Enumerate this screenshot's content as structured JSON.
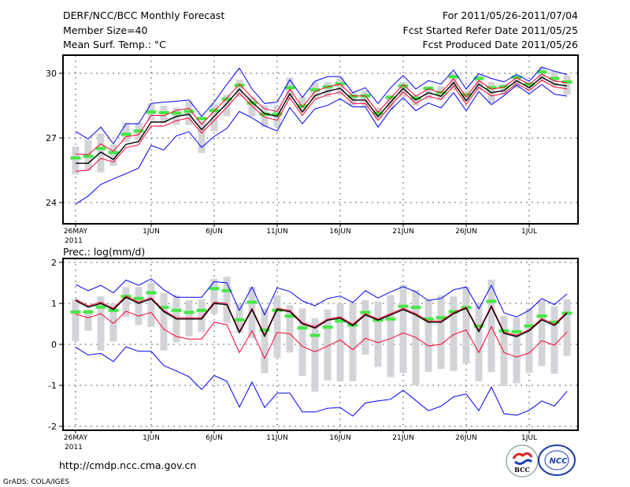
{
  "header": {
    "title": "DERF/NCC/BCC Monthly Forecast",
    "member_size": "Member Size=40",
    "variable": "Mean Surf. Temp.: °C",
    "period": "For 2011/05/26-2011/07/04",
    "started": "Fcst Started Refer Date 2011/05/25",
    "produced": "Fcst Produced Date 2011/05/26"
  },
  "footer": {
    "url": "http://cmdp.ncc.cma.gov.cn",
    "credit": "GrADS: COLA/IGES",
    "logo_bcc": "BCC",
    "logo_ncc": "NCC"
  },
  "colors": {
    "max_min": "#0000ff",
    "spread": "#ff0030",
    "mean": "#000000",
    "obs": "#44e844",
    "range": "#d2d4d8"
  },
  "chart_data": [
    {
      "type": "line",
      "title": "Mean Surf. Temp.: °C",
      "x_start": "26MAY 2011",
      "x_tick_labels": [
        {
          "day": 0,
          "label": "26MAY",
          "sub": "2011"
        },
        {
          "day": 6,
          "label": "1JUN"
        },
        {
          "day": 11,
          "label": "6JUN"
        },
        {
          "day": 16,
          "label": "11JUN"
        },
        {
          "day": 21,
          "label": "16JUN"
        },
        {
          "day": 26,
          "label": "21JUN"
        },
        {
          "day": 31,
          "label": "26JUN"
        },
        {
          "day": 36,
          "label": "1JUL"
        }
      ],
      "y_ticks": [
        24,
        27,
        30
      ],
      "ylim": [
        22.6,
        31
      ],
      "grid": true,
      "series": {
        "max": [
          27.3,
          26.95,
          27.5,
          26.73,
          27.66,
          27.66,
          28.6,
          28.66,
          28.7,
          28.76,
          28.0,
          28.66,
          29.48,
          30.24,
          29.27,
          28.6,
          28.66,
          29.7,
          28.88,
          29.63,
          29.85,
          29.85,
          29.1,
          29.33,
          28.6,
          29.33,
          29.9,
          29.27,
          29.66,
          29.5,
          30.15,
          29.27,
          29.98,
          29.76,
          29.6,
          29.94,
          29.63,
          30.28,
          30.1,
          29.94
        ],
        "min": [
          23.93,
          24.3,
          24.84,
          25.1,
          25.34,
          25.6,
          26.65,
          26.44,
          27.1,
          27.28,
          26.56,
          27.07,
          27.44,
          28.23,
          27.93,
          27.56,
          27.32,
          28.41,
          27.66,
          28.35,
          28.51,
          28.82,
          28.44,
          28.44,
          27.5,
          28.3,
          28.87,
          28.26,
          28.62,
          28.39,
          29.1,
          28.26,
          29.15,
          28.54,
          28.96,
          29.45,
          29.05,
          29.48,
          29.03,
          28.94
        ],
        "upper": [
          26.25,
          26.22,
          26.72,
          26.38,
          27.05,
          27.15,
          28.05,
          28.03,
          28.28,
          28.37,
          27.63,
          28.25,
          28.85,
          29.5,
          28.88,
          28.35,
          28.22,
          29.27,
          28.42,
          29.16,
          29.37,
          29.5,
          28.95,
          28.95,
          28.19,
          28.85,
          29.48,
          28.94,
          29.28,
          29.1,
          29.74,
          28.9,
          29.66,
          29.26,
          29.36,
          29.8,
          29.48,
          29.96,
          29.65,
          29.56
        ],
        "lower": [
          25.45,
          25.5,
          26.05,
          25.88,
          26.55,
          26.68,
          27.55,
          27.55,
          27.8,
          27.92,
          27.22,
          27.82,
          28.42,
          29.08,
          28.48,
          27.96,
          27.82,
          28.86,
          28.04,
          28.79,
          29.0,
          29.13,
          28.6,
          28.6,
          27.82,
          28.5,
          29.14,
          28.6,
          28.94,
          28.78,
          29.42,
          28.56,
          29.35,
          28.95,
          29.06,
          29.53,
          29.2,
          29.68,
          29.36,
          29.28
        ],
        "mean": [
          25.82,
          25.82,
          26.34,
          26.0,
          26.7,
          26.83,
          27.74,
          27.73,
          28.0,
          28.1,
          27.38,
          28.0,
          28.6,
          29.27,
          28.66,
          28.13,
          28.0,
          29.05,
          28.2,
          28.96,
          29.17,
          29.3,
          28.76,
          28.76,
          27.99,
          28.66,
          29.3,
          28.76,
          29.1,
          28.93,
          29.57,
          28.72,
          29.5,
          29.1,
          29.2,
          29.66,
          29.33,
          29.82,
          29.5,
          29.41
        ],
        "obs": [
          26.07,
          26.15,
          26.51,
          26.32,
          27.17,
          27.32,
          28.2,
          28.17,
          28.15,
          28.23,
          27.9,
          28.27,
          28.8,
          29.44,
          28.62,
          28.1,
          28.1,
          29.33,
          28.48,
          29.23,
          29.37,
          29.51,
          28.93,
          28.95,
          28.15,
          28.88,
          29.41,
          28.84,
          29.3,
          29.1,
          29.84,
          29.0,
          29.76,
          29.33,
          29.37,
          29.82,
          29.49,
          30.06,
          29.76,
          29.6
        ],
        "range_low": [
          25.3,
          25.5,
          25.4,
          25.7,
          26.8,
          26.9,
          27.8,
          27.7,
          27.6,
          27.6,
          26.3,
          27.3,
          28.0,
          28.9,
          28.0,
          27.5,
          27.5,
          28.8,
          28.2,
          28.8,
          28.9,
          29.0,
          28.5,
          28.4,
          27.9,
          28.3,
          28.9,
          28.5,
          28.8,
          28.8,
          29.2,
          28.7,
          29.2,
          28.6,
          29.0,
          29.3,
          29.2,
          29.6,
          29.4,
          29.0
        ],
        "range_high": [
          26.6,
          26.9,
          27.2,
          26.7,
          27.7,
          27.7,
          28.6,
          28.5,
          28.4,
          28.7,
          27.8,
          28.6,
          29.0,
          29.7,
          28.9,
          28.5,
          28.5,
          29.8,
          28.9,
          29.6,
          29.6,
          29.8,
          29.1,
          29.2,
          28.4,
          29.0,
          29.6,
          29.0,
          29.4,
          29.4,
          30.0,
          29.2,
          29.9,
          29.6,
          29.5,
          29.9,
          29.6,
          30.3,
          30.1,
          29.9
        ]
      }
    },
    {
      "type": "line",
      "title": "Prec.: log(mm/d)",
      "x_start": "26MAY 2011",
      "x_tick_labels": [
        {
          "day": 0,
          "label": "26MAY",
          "sub": "2011"
        },
        {
          "day": 6,
          "label": "1JUN"
        },
        {
          "day": 11,
          "label": "6JUN"
        },
        {
          "day": 16,
          "label": "11JUN"
        },
        {
          "day": 21,
          "label": "16JUN"
        },
        {
          "day": 26,
          "label": "21JUN"
        },
        {
          "day": 31,
          "label": "26JUN"
        },
        {
          "day": 36,
          "label": "1JUL"
        }
      ],
      "y_ticks": [
        -2,
        -1,
        0,
        1,
        2
      ],
      "ylim": [
        -2.1,
        2.1
      ],
      "grid": true,
      "series": {
        "max": [
          1.46,
          1.31,
          1.44,
          1.26,
          1.57,
          1.44,
          1.6,
          1.33,
          1.15,
          1.15,
          1.15,
          1.53,
          1.5,
          0.83,
          1.4,
          0.72,
          1.38,
          1.29,
          1.06,
          0.94,
          1.12,
          1.18,
          1.02,
          1.31,
          1.13,
          1.28,
          1.41,
          1.28,
          1.07,
          1.12,
          1.33,
          1.4,
          0.87,
          1.44,
          0.77,
          0.67,
          0.83,
          1.12,
          0.97,
          1.23
        ],
        "min": [
          -0.07,
          -0.26,
          -0.22,
          -0.42,
          -0.06,
          -0.17,
          -0.17,
          -0.52,
          -0.65,
          -0.79,
          -1.1,
          -0.76,
          -0.9,
          -1.53,
          -0.92,
          -1.54,
          -1.19,
          -1.19,
          -1.65,
          -1.65,
          -1.56,
          -1.54,
          -1.75,
          -1.43,
          -1.38,
          -1.34,
          -1.12,
          -1.37,
          -1.62,
          -1.51,
          -1.28,
          -1.21,
          -1.62,
          -1.04,
          -1.69,
          -1.73,
          -1.61,
          -1.38,
          -1.51,
          -1.14
        ],
        "upper": [
          1.1,
          0.94,
          1.03,
          0.88,
          1.18,
          1.03,
          1.14,
          0.83,
          0.65,
          0.65,
          0.65,
          1.03,
          1.0,
          0.32,
          0.88,
          0.23,
          0.88,
          0.83,
          0.53,
          0.43,
          0.62,
          0.67,
          0.49,
          0.75,
          0.62,
          0.75,
          0.88,
          0.75,
          0.57,
          0.57,
          0.78,
          0.91,
          0.34,
          0.95,
          0.3,
          0.22,
          0.36,
          0.63,
          0.49,
          0.79
        ],
        "lower": [
          0.74,
          0.65,
          0.75,
          0.51,
          0.81,
          0.69,
          0.78,
          0.37,
          0.19,
          0.13,
          0.13,
          0.54,
          0.48,
          -0.2,
          0.33,
          -0.34,
          0.29,
          0.26,
          -0.05,
          -0.18,
          -0.04,
          0.11,
          -0.13,
          0.15,
          0.04,
          0.14,
          0.28,
          0.17,
          -0.04,
          0.0,
          0.24,
          0.35,
          -0.2,
          0.43,
          -0.2,
          -0.31,
          -0.21,
          0.09,
          -0.02,
          0.3
        ],
        "mean": [
          1.07,
          0.91,
          1.0,
          0.85,
          1.15,
          1.0,
          1.11,
          0.8,
          0.62,
          0.62,
          0.62,
          1.0,
          0.97,
          0.29,
          0.85,
          0.2,
          0.85,
          0.8,
          0.5,
          0.4,
          0.59,
          0.64,
          0.46,
          0.72,
          0.59,
          0.72,
          0.85,
          0.72,
          0.54,
          0.54,
          0.75,
          0.88,
          0.31,
          0.92,
          0.27,
          0.19,
          0.33,
          0.6,
          0.46,
          0.76
        ],
        "obs": [
          0.79,
          0.79,
          0.91,
          0.83,
          1.17,
          1.12,
          1.26,
          0.9,
          0.83,
          0.78,
          0.83,
          1.36,
          1.31,
          0.6,
          1.03,
          0.35,
          0.83,
          0.69,
          0.4,
          0.22,
          0.42,
          0.57,
          0.47,
          0.78,
          0.59,
          0.62,
          0.93,
          0.9,
          0.62,
          0.65,
          0.8,
          0.9,
          0.45,
          1.05,
          0.33,
          0.31,
          0.45,
          0.69,
          0.54,
          0.76
        ],
        "range_low": [
          0.08,
          0.33,
          -0.15,
          0.07,
          0.67,
          0.47,
          0.43,
          -0.15,
          0.05,
          0.2,
          0.3,
          0.75,
          0.53,
          0.28,
          0.15,
          -0.7,
          -0.33,
          -0.2,
          -0.77,
          -1.15,
          -0.88,
          -0.9,
          -0.9,
          -0.25,
          -0.55,
          -0.8,
          -0.7,
          -1.0,
          -0.67,
          -0.6,
          -0.65,
          -0.47,
          -0.9,
          -0.68,
          -1.02,
          -0.95,
          -0.7,
          -0.53,
          -0.72,
          -0.28
        ],
        "range_high": [
          1.1,
          0.85,
          1.17,
          1.0,
          1.4,
          1.4,
          1.5,
          1.25,
          1.2,
          1.08,
          1.1,
          1.6,
          1.65,
          0.98,
          1.4,
          0.88,
          1.2,
          0.95,
          0.88,
          0.64,
          0.85,
          1.0,
          1.02,
          1.08,
          1.05,
          1.2,
          1.45,
          1.33,
          1.1,
          1.2,
          1.17,
          1.4,
          1.02,
          1.58,
          0.7,
          0.65,
          0.88,
          1.08,
          0.93,
          1.1
        ]
      }
    }
  ]
}
